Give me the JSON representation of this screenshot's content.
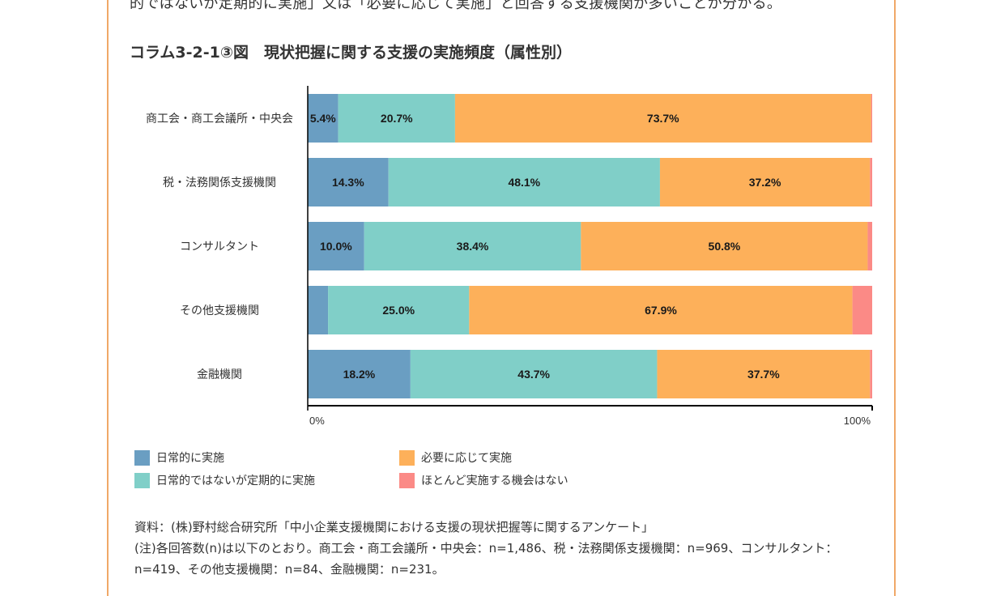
{
  "intro_text": "的ではないが定期的に実施」又は「必要に応じて実施」と回答する支援機関が多いことが分かる。",
  "figure_title": "コラム3-2-1③図　現状把握に関する支援の実施頻度（属性別）",
  "chart_data": {
    "type": "bar",
    "orientation": "horizontal",
    "stacked": true,
    "categories": [
      "商工会・商工会議所・中央会",
      "税・法務関係支援機関",
      "コンサルタント",
      "その他支援機関",
      "金融機関"
    ],
    "series": [
      {
        "name": "日常的に実施",
        "color": "#6a9ec2",
        "values": [
          5.4,
          14.3,
          10.0,
          3.6,
          18.2
        ]
      },
      {
        "name": "日常的ではないが定期的に実施",
        "color": "#80cfc8",
        "values": [
          20.7,
          48.1,
          38.4,
          25.0,
          43.7
        ]
      },
      {
        "name": "必要に応じて実施",
        "color": "#fdb05a",
        "values": [
          73.7,
          37.2,
          50.8,
          67.9,
          37.7
        ]
      },
      {
        "name": "ほとんど実施する機会はない",
        "color": "#fb8a86",
        "values": [
          0.2,
          0.4,
          0.8,
          3.5,
          0.4
        ]
      }
    ],
    "data_labels": [
      [
        "5.4%",
        "20.7%",
        "73.7%",
        ""
      ],
      [
        "14.3%",
        "48.1%",
        "37.2%",
        ""
      ],
      [
        "10.0%",
        "38.4%",
        "50.8%",
        ""
      ],
      [
        "",
        "25.0%",
        "67.9%",
        ""
      ],
      [
        "18.2%",
        "43.7%",
        "37.7%",
        ""
      ]
    ],
    "xlim": [
      0,
      100
    ],
    "x_tick_labels": [
      "0%",
      "100%"
    ],
    "legend_position": "bottom"
  },
  "legend": [
    {
      "label": "日常的に実施",
      "color": "#6a9ec2"
    },
    {
      "label": "必要に応じて実施",
      "color": "#fdb05a"
    },
    {
      "label": "日常的ではないが定期的に実施",
      "color": "#80cfc8"
    },
    {
      "label": "ほとんど実施する機会はない",
      "color": "#fb8a86"
    }
  ],
  "notes": {
    "source": "資料：(株)野村総合研究所「中小企業支援機関における支援の現状把握等に関するアンケート」",
    "note": "(注)各回答数(n)は以下のとおり。商工会・商工会議所・中央会：n=1,486、税・法務関係支援機関：n=969、コンサルタント：n=419、その他支援機関：n=84、金融機関：n=231。"
  },
  "colors": {
    "frame_border": "#f0a868"
  }
}
